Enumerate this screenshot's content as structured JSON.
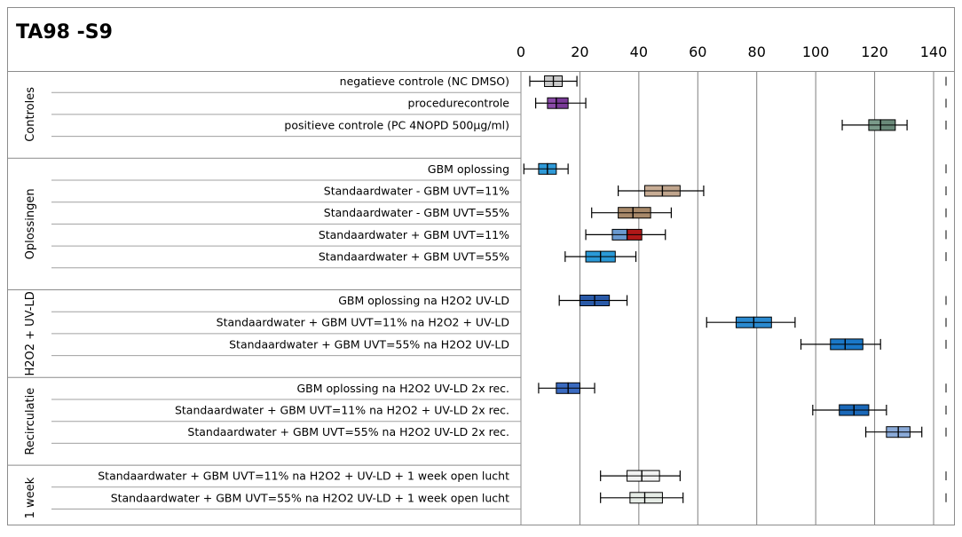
{
  "chart_data": {
    "type": "boxplot",
    "title": "TA98 -S9",
    "xlim": [
      0,
      140
    ],
    "x_ticks": [
      "0",
      "20",
      "40",
      "60",
      "80",
      "100",
      "120",
      "140"
    ],
    "x_tick_values": [
      0,
      20,
      40,
      60,
      80,
      100,
      120,
      140
    ],
    "grid": "vertical",
    "groups": [
      {
        "label": "Controles",
        "rows": [
          {
            "label": "negatieve controle (NC DMSO)",
            "min": 3,
            "q1": 8,
            "median": 11,
            "q3": 14,
            "max": 19,
            "colors": [
              "#c8c8c8",
              "#c8c8c8"
            ]
          },
          {
            "label": "procedurecontrole",
            "min": 5,
            "q1": 9,
            "median": 12,
            "q3": 16,
            "max": 22,
            "colors": [
              "#8a4aa8",
              "#7a3a98"
            ]
          },
          {
            "label": "positieve controle (PC 4NOPD 500µg/ml)",
            "min": 109,
            "q1": 118,
            "median": 122,
            "q3": 127,
            "max": 131,
            "colors": [
              "#7a9a8a",
              "#6a8a7a"
            ]
          }
        ]
      },
      {
        "label": "Oplossingen",
        "rows": [
          {
            "label": "GBM oplossing",
            "min": 1,
            "q1": 6,
            "median": 9,
            "q3": 12,
            "max": 16,
            "colors": [
              "#2f9ad8",
              "#2f9ad8"
            ]
          },
          {
            "label": "Standaardwater - GBM UVT=11%",
            "min": 33,
            "q1": 42,
            "median": 48,
            "q3": 54,
            "max": 62,
            "colors": [
              "#c8ad95",
              "#c0a58d"
            ]
          },
          {
            "label": "Standaardwater - GBM UVT=55%",
            "min": 24,
            "q1": 33,
            "median": 38,
            "q3": 44,
            "max": 51,
            "colors": [
              "#a8896a",
              "#a8896a"
            ]
          },
          {
            "label": "Standaardwater + GBM UVT=11%",
            "min": 22,
            "q1": 31,
            "median": 36,
            "q3": 41,
            "max": 49,
            "colors": [
              "#6a9ad0",
              "#b01818"
            ]
          },
          {
            "label": "Standaardwater + GBM UVT=55%",
            "min": 15,
            "q1": 22,
            "median": 27,
            "q3": 32,
            "max": 39,
            "colors": [
              "#2a9ad8",
              "#2a9ad8"
            ]
          }
        ]
      },
      {
        "label": "H2O2 + UV-LD",
        "rows": [
          {
            "label": "GBM oplossing na H2O2 UV-LD",
            "min": 13,
            "q1": 20,
            "median": 25,
            "q3": 30,
            "max": 36,
            "colors": [
              "#2a5aa8",
              "#2a5aa8"
            ]
          },
          {
            "label": "Standaardwater + GBM UVT=11% na H2O2 + UV-LD",
            "min": 63,
            "q1": 73,
            "median": 79,
            "q3": 85,
            "max": 93,
            "colors": [
              "#2a8ad0",
              "#2a8ad0"
            ]
          },
          {
            "label": "Standaardwater + GBM UVT=55% na H2O2 UV-LD",
            "min": 95,
            "q1": 105,
            "median": 110,
            "q3": 116,
            "max": 122,
            "colors": [
              "#1a78c8",
              "#1a78c8"
            ]
          }
        ]
      },
      {
        "label": "Recirculatie",
        "rows": [
          {
            "label": "GBM oplossing na H2O2 UV-LD 2x rec.",
            "min": 6,
            "q1": 12,
            "median": 16,
            "q3": 20,
            "max": 25,
            "colors": [
              "#3a6ac0",
              "#3a6ac0"
            ]
          },
          {
            "label": "Standaardwater + GBM UVT=11% na H2O2 + UV-LD 2x rec.",
            "min": 99,
            "q1": 108,
            "median": 113,
            "q3": 118,
            "max": 124,
            "colors": [
              "#1a68b8",
              "#1a68b8"
            ]
          },
          {
            "label": "Standaardwater + GBM UVT=55% na H2O2 UV-LD 2x rec.",
            "min": 117,
            "q1": 124,
            "median": 128,
            "q3": 132,
            "max": 136,
            "colors": [
              "#8aaad8",
              "#8aaad8"
            ]
          }
        ]
      },
      {
        "label": "1 week",
        "rows": [
          {
            "label": "Standaardwater + GBM UVT=11% na H2O2 + UV-LD + 1 week open lucht",
            "min": 27,
            "q1": 36,
            "median": 41,
            "q3": 47,
            "max": 54,
            "colors": [
              "#f2f2f2",
              "#f2f2f2"
            ]
          },
          {
            "label": "Standaardwater + GBM UVT=55% na H2O2 UV-LD + 1 week open lucht",
            "min": 27,
            "q1": 37,
            "median": 42,
            "q3": 48,
            "max": 55,
            "colors": [
              "#e6ece6",
              "#e6ece6"
            ]
          }
        ]
      }
    ]
  }
}
